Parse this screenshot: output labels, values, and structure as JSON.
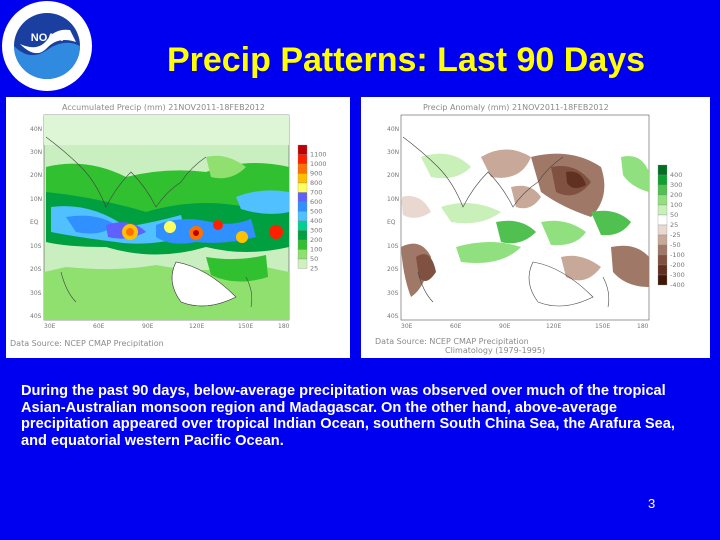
{
  "slide": {
    "title": "Precip Patterns: Last 90 Days",
    "description": "During the past 90 days, below-average precipitation was observed over much of the tropical Asian-Australian monsoon region and Madagascar. On the other hand, above-average precipitation appeared over tropical Indian Ocean, southern South China Sea, the Arafura Sea, and equatorial western Pacific Ocean.",
    "page_number": "3"
  },
  "logo": {
    "acronym": "NOAA",
    "ring_text": "NATIONAL OCEANIC AND ATMOSPHERIC ADMINISTRATION • U.S. DEPARTMENT OF COMMERCE"
  },
  "colors": {
    "background": "#0000f0",
    "title": "#ffff00",
    "text": "#ffffff"
  },
  "maps": {
    "left": {
      "header": "Accumulated Precip (mm) 21NOV2011-18FEB2012",
      "source": "Data Source: NCEP CMAP Precipitation",
      "colorbar_labels": [
        "1100",
        "1000",
        "900",
        "800",
        "700",
        "600",
        "500",
        "400",
        "300",
        "200",
        "100",
        "50",
        "25"
      ],
      "colorbar_colors": [
        "#c00000",
        "#ff2000",
        "#ff7000",
        "#ffc000",
        "#ffff60",
        "#6060ff",
        "#3090ff",
        "#50c0ff",
        "#00d090",
        "#00a040",
        "#30c030",
        "#90e070",
        "#d0f0c0"
      ]
    },
    "right": {
      "header": "Precip Anomaly (mm) 21NOV2011-18FEB2012",
      "source_line1": "Data Source: NCEP CMAP Precipitation",
      "source_line2": "Climatology (1979-1995)",
      "colorbar_labels": [
        "400",
        "300",
        "200",
        "100",
        "50",
        "25",
        "-25",
        "-50",
        "-100",
        "-200",
        "-300",
        "-400"
      ],
      "colorbar_colors": [
        "#007020",
        "#10a030",
        "#50c050",
        "#90e080",
        "#c8f0b8",
        "#ffffff",
        "#e8d8d0",
        "#c8a898",
        "#a07868",
        "#805040",
        "#603020",
        "#401808"
      ]
    },
    "lat_labels": [
      "40N",
      "30N",
      "20N",
      "10N",
      "EQ",
      "10S",
      "20S",
      "30S",
      "40S"
    ],
    "lon_labels": [
      "30E",
      "60E",
      "90E",
      "120E",
      "150E",
      "180"
    ]
  }
}
